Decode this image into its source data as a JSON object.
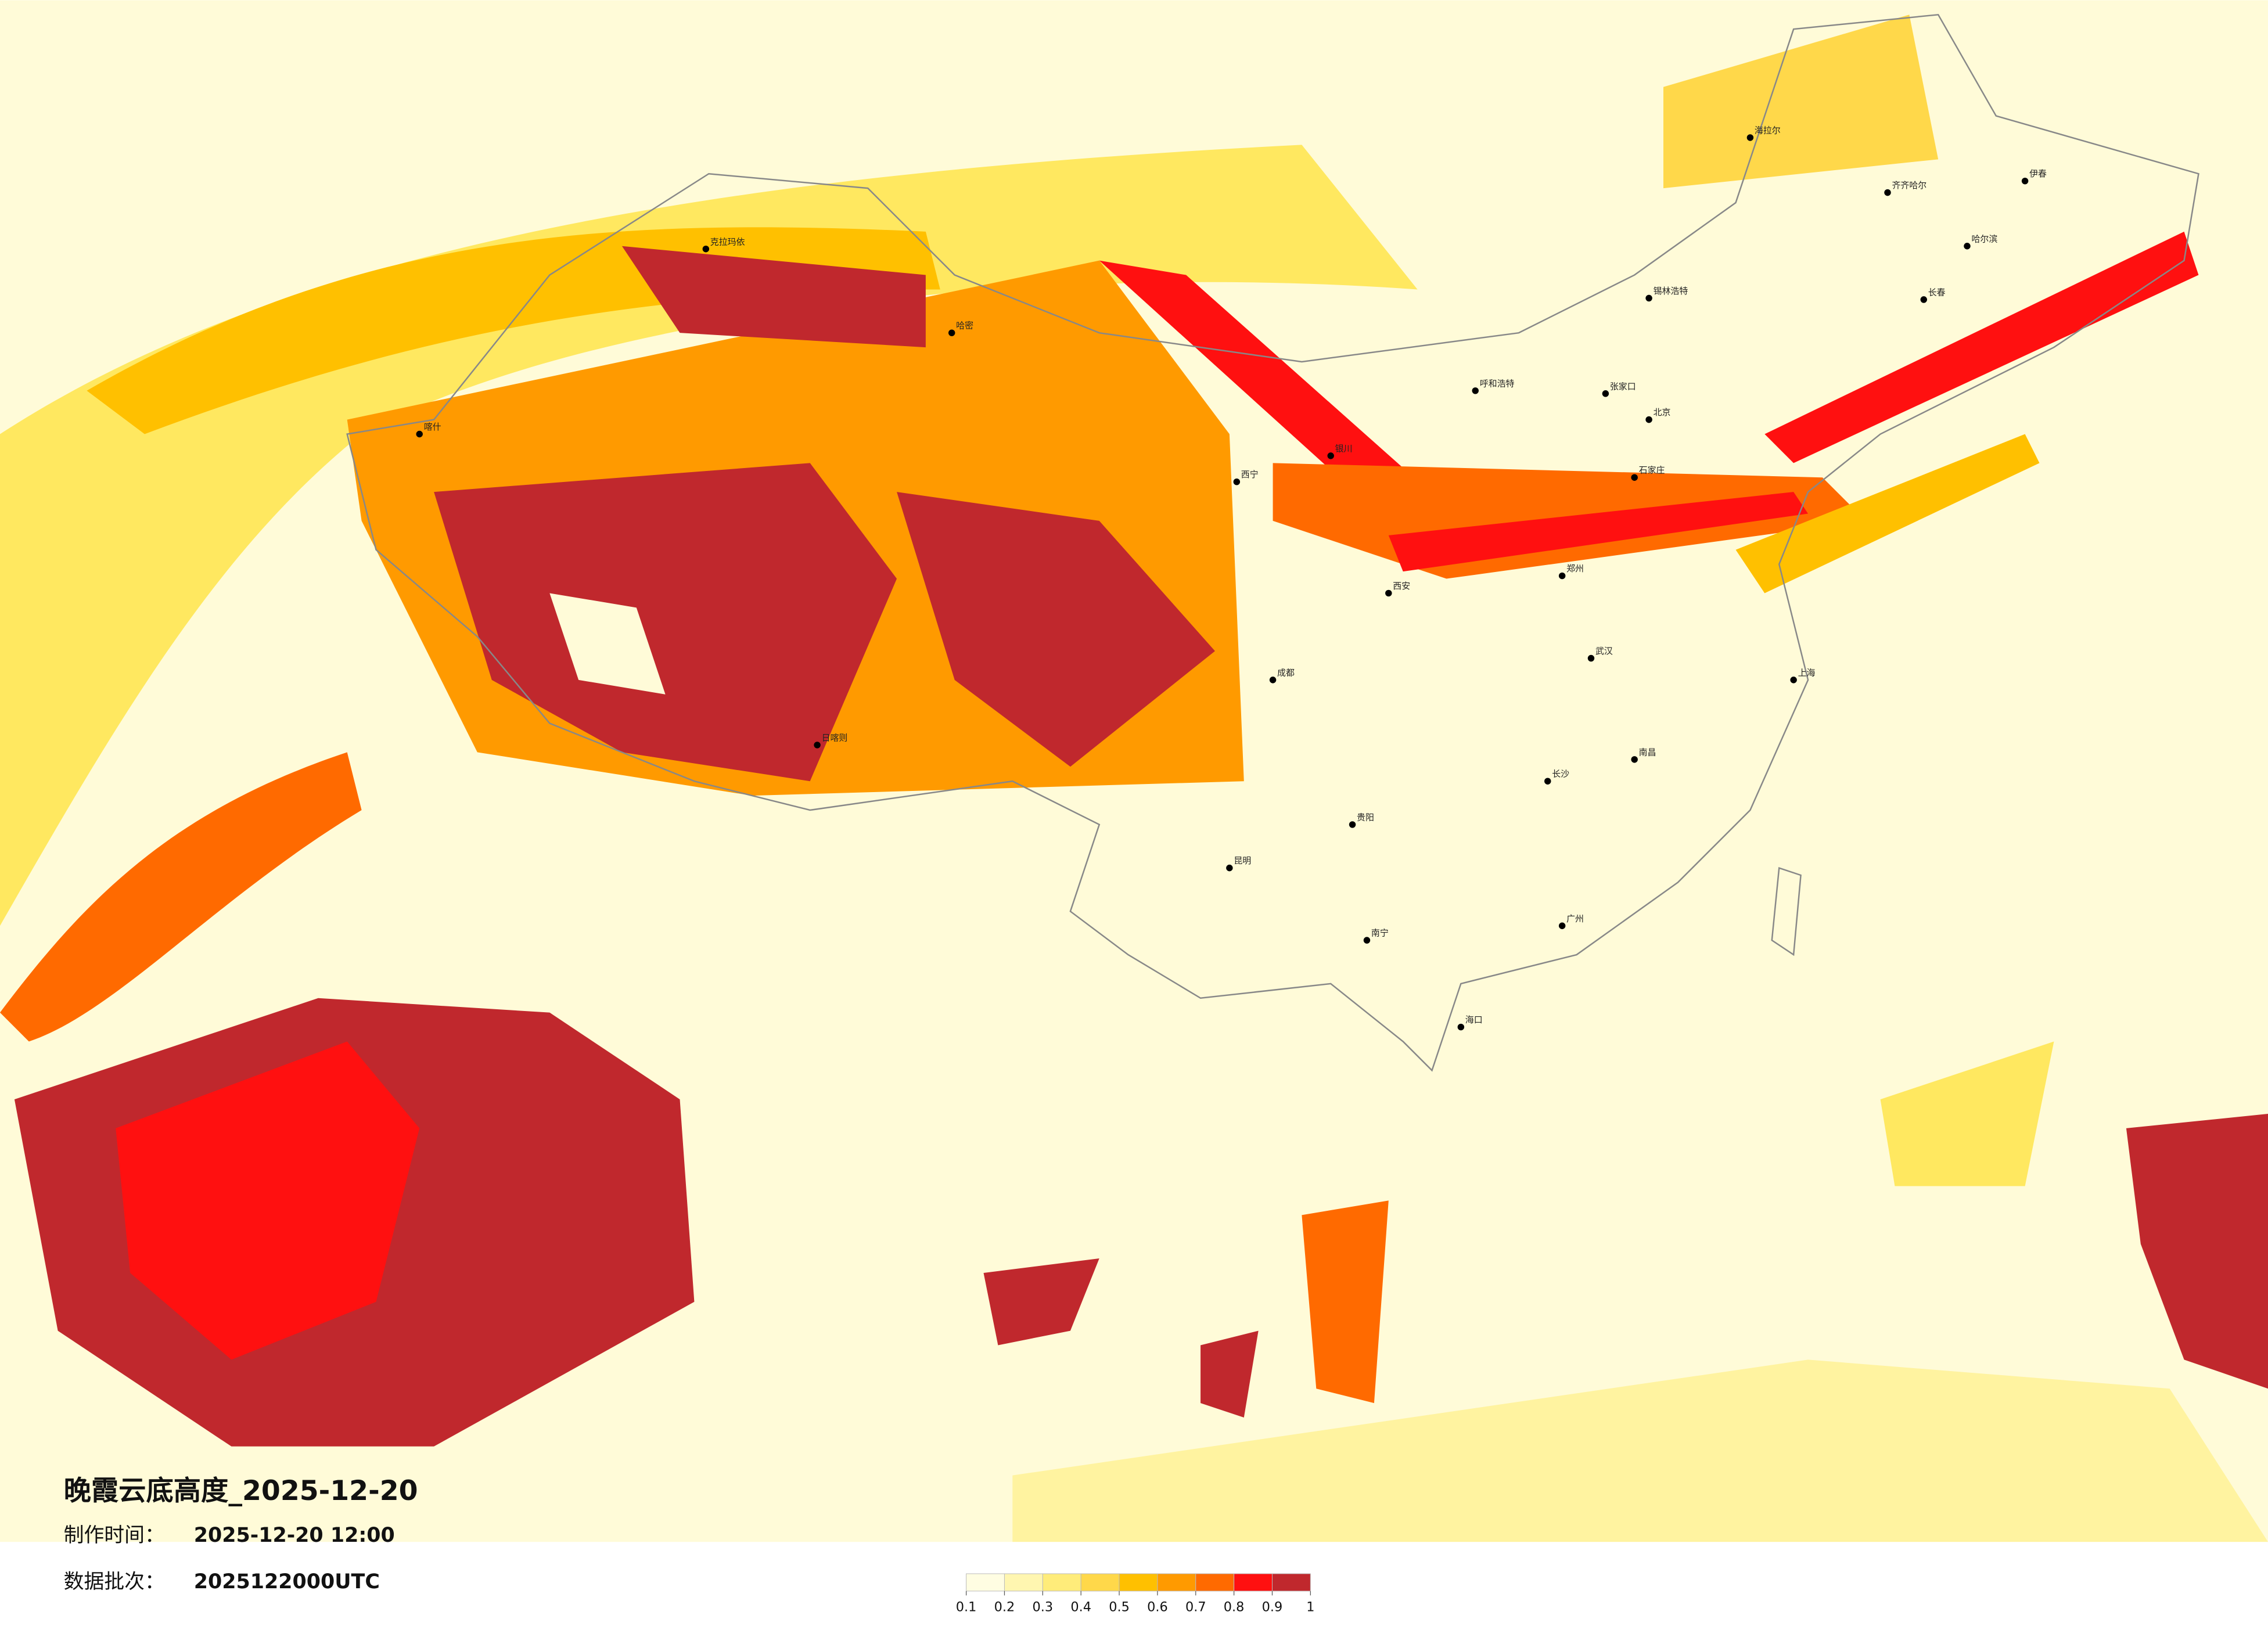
{
  "title": "晚霞云底高度_2025-12-20",
  "made_label": "制作时间：",
  "made_time": "2025-12-20 12:00",
  "batch_label": "数据批次：",
  "batch": "2025122000UTC",
  "legend": {
    "ticks": [
      0.1,
      0.2,
      0.3,
      0.4,
      0.5,
      0.6,
      0.7,
      0.8,
      0.9,
      1
    ],
    "colors": [
      "#fffde2",
      "#fff6b0",
      "#ffec7a",
      "#ffd84a",
      "#ffc000",
      "#ff9a00",
      "#ff6a00",
      "#ff1010",
      "#c0282d"
    ]
  },
  "cities": [
    "克拉玛依",
    "哈密",
    "喀什",
    "日喀则",
    "西宁",
    "成都",
    "昆明",
    "南宁",
    "海口",
    "贵阳",
    "长沙",
    "郑州",
    "石家庄",
    "呼和浩特",
    "张家口",
    "锡林浩特",
    "长春",
    "哈尔滨",
    "齐齐哈尔",
    "海拉尔",
    "伊春",
    "北京",
    "上海",
    "广州",
    "南昌",
    "武汉",
    "西安",
    "银川"
  ]
}
